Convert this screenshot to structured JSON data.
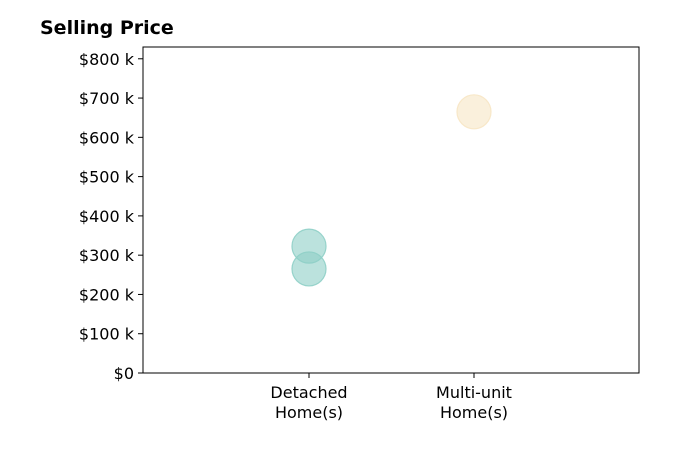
{
  "chart_data": {
    "type": "scatter",
    "title": "Selling Price",
    "xlabel": "",
    "ylabel": "",
    "categories": [
      [
        "Detached",
        "Home(s)"
      ],
      [
        "Multi-unit",
        "Home(s)"
      ]
    ],
    "ylim": [
      0,
      830000
    ],
    "yticks": [
      0,
      100000,
      200000,
      300000,
      400000,
      500000,
      600000,
      700000,
      800000
    ],
    "ytick_labels": [
      "$0",
      "$100 k",
      "$200 k",
      "$300 k",
      "$400 k",
      "$500 k",
      "$600 k",
      "$700 k",
      "$800 k"
    ],
    "grid": false,
    "series": [
      {
        "category": 0,
        "color": "#8ecfc6",
        "values": [
          323000,
          265000
        ]
      },
      {
        "category": 1,
        "color": "#f7e6c4",
        "values": [
          665000
        ]
      }
    ]
  }
}
